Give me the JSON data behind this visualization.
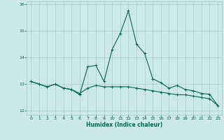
{
  "xlabel": "Humidex (Indice chaleur)",
  "x_values": [
    0,
    1,
    2,
    3,
    4,
    5,
    6,
    7,
    8,
    9,
    10,
    11,
    12,
    13,
    14,
    15,
    16,
    17,
    18,
    19,
    20,
    21,
    22,
    23
  ],
  "line1_y": [
    13.1,
    13.0,
    12.9,
    13.0,
    12.85,
    12.8,
    12.65,
    12.85,
    12.95,
    12.9,
    12.9,
    12.9,
    12.9,
    12.85,
    12.8,
    12.75,
    12.7,
    12.65,
    12.6,
    12.6,
    12.55,
    12.5,
    12.45,
    12.2
  ],
  "line2_y": [
    13.1,
    13.0,
    12.9,
    13.0,
    12.85,
    12.8,
    12.6,
    13.65,
    13.7,
    13.1,
    14.3,
    14.9,
    15.75,
    14.5,
    14.15,
    13.2,
    13.05,
    12.85,
    12.95,
    12.8,
    12.75,
    12.65,
    12.62,
    12.2
  ],
  "bg_color": "#cce8e8",
  "grid_color": "#aacccc",
  "line_color": "#006655",
  "marker": "+",
  "ylim": [
    11.85,
    16.1
  ],
  "yticks": [
    12,
    13,
    14,
    15,
    16
  ],
  "xticks": [
    0,
    1,
    2,
    3,
    4,
    5,
    6,
    7,
    8,
    9,
    10,
    11,
    12,
    13,
    14,
    15,
    16,
    17,
    18,
    19,
    20,
    21,
    22,
    23
  ]
}
